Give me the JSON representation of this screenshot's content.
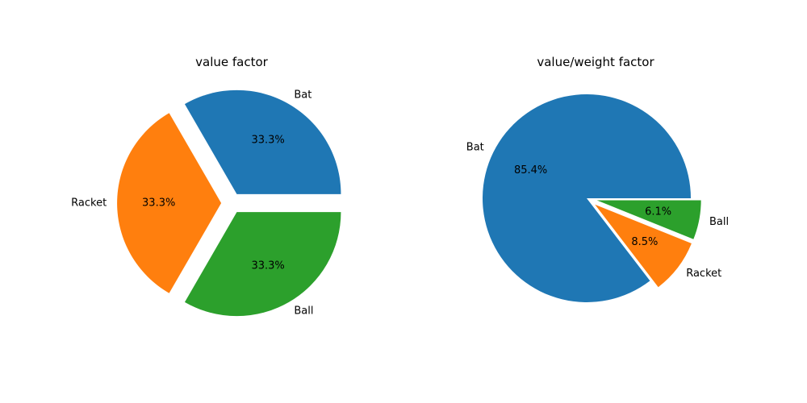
{
  "chart_data": [
    {
      "type": "pie",
      "title": "value factor",
      "slices": [
        {
          "label": "Bat",
          "value": 33.3,
          "pct_label": "33.3%",
          "color": "#1f77b4",
          "exploded": true
        },
        {
          "label": "Racket",
          "value": 33.3,
          "pct_label": "33.3%",
          "color": "#ff7f0e",
          "exploded": true
        },
        {
          "label": "Ball",
          "value": 33.3,
          "pct_label": "33.3%",
          "color": "#2ca02c",
          "exploded": true
        }
      ]
    },
    {
      "type": "pie",
      "title": "value/weight factor",
      "slices": [
        {
          "label": "Bat",
          "value": 85.4,
          "pct_label": "85.4%",
          "color": "#1f77b4",
          "exploded": false
        },
        {
          "label": "Racket",
          "value": 8.5,
          "pct_label": "8.5%",
          "color": "#ff7f0e",
          "exploded": true
        },
        {
          "label": "Ball",
          "value": 6.1,
          "pct_label": "6.1%",
          "color": "#2ca02c",
          "exploded": true
        }
      ]
    }
  ]
}
